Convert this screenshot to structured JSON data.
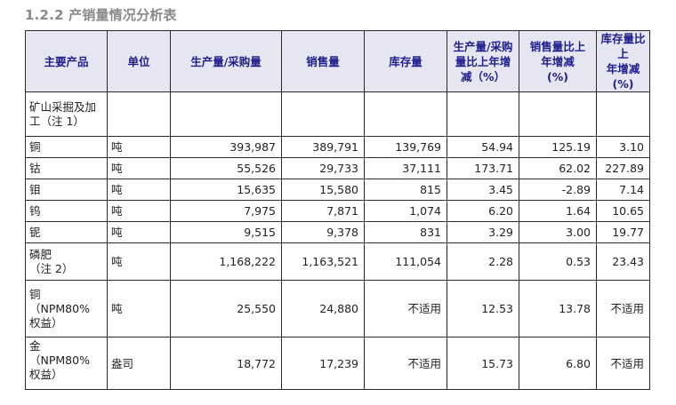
{
  "section": {
    "title": "1.2.2 产销量情况分析表"
  },
  "table": {
    "headers": [
      "主要产品",
      "单位",
      "生产量/采购量",
      "销售量",
      "库存量",
      "生产量/采购\n量比上年增\n减（%）",
      "销售量比上\n年增减\n(%)",
      "库存量比上\n年增减\n(%)"
    ],
    "rows": [
      [
        "矿山采掘及加\n工（注 1）",
        "",
        "",
        "",
        "",
        "",
        "",
        ""
      ],
      [
        "铜",
        "吨",
        "393,987",
        "389,791",
        "139,769",
        "54.94",
        "125.19",
        "3.10"
      ],
      [
        "钴",
        "吨",
        "55,526",
        "29,733",
        "37,111",
        "173.71",
        "62.02",
        "227.89"
      ],
      [
        "钼",
        "吨",
        "15,635",
        "15,580",
        "815",
        "3.45",
        "-2.89",
        "7.14"
      ],
      [
        "钨",
        "吨",
        "7,975",
        "7,871",
        "1,074",
        "6.20",
        "1.64",
        "10.65"
      ],
      [
        "铌",
        "吨",
        "9,515",
        "9,378",
        "831",
        "3.29",
        "3.00",
        "19.77"
      ],
      [
        "磷肥\n（注 2）",
        "吨",
        "1,168,222",
        "1,163,521",
        "111,054",
        "2.28",
        "0.53",
        "23.43"
      ],
      [
        "铜\n（NPM80%\n权益）",
        "吨",
        "25,550",
        "24,880",
        "不适用",
        "12.53",
        "13.78",
        "不适用"
      ],
      [
        "金\n（NPM80%\n权益）",
        "盎司",
        "18,772",
        "17,239",
        "不适用",
        "15.73",
        "6.80",
        "不适用"
      ]
    ]
  }
}
